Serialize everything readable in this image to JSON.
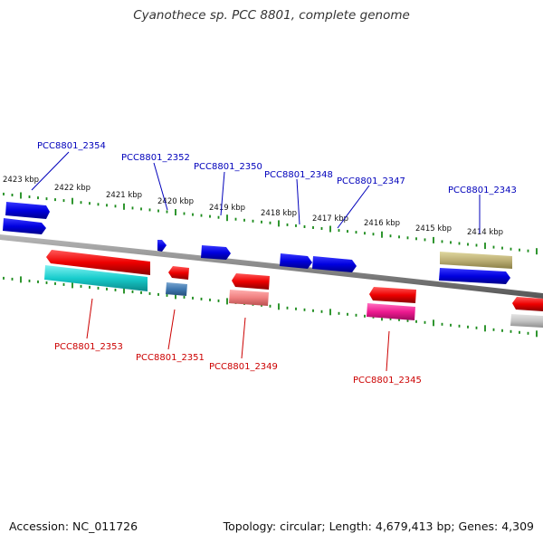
{
  "title": "Cyanothece sp. PCC 8801, complete genome",
  "footer": {
    "accession": "Accession: NC_011726",
    "summary": "Topology: circular; Length: 4,679,413 bp; Genes: 4,309"
  },
  "colors": {
    "forward_label": "#0000bb",
    "reverse_label": "#cc0000",
    "tick": "#1a8a1a",
    "backbone": "#8a8a8a"
  },
  "kbp_labels": [
    "2423 kbp",
    "2422 kbp",
    "2421 kbp",
    "2420 kbp",
    "2419 kbp",
    "2418 kbp",
    "2417 kbp",
    "2416 kbp",
    "2415 kbp",
    "2414 kbp"
  ],
  "genes": [
    {
      "id": "PCC8801_2354",
      "strand": "forward",
      "color": "#0000e0"
    },
    {
      "id": "PCC8801_2352",
      "strand": "forward",
      "color": "#0000e0"
    },
    {
      "id": "PCC8801_2350",
      "strand": "forward",
      "color": "#0000e0"
    },
    {
      "id": "PCC8801_2348",
      "strand": "forward",
      "color": "#0000e0"
    },
    {
      "id": "PCC8801_2347",
      "strand": "forward",
      "color": "#0000e0"
    },
    {
      "id": "PCC8801_2343",
      "strand": "forward",
      "color": "#0000e0"
    },
    {
      "id": "PCC8801_2353",
      "strand": "reverse",
      "color": "#ee0000"
    },
    {
      "id": "PCC8801_2351",
      "strand": "reverse",
      "color": "#ee0000"
    },
    {
      "id": "PCC8801_2349",
      "strand": "reverse",
      "color": "#ee0000"
    },
    {
      "id": "PCC8801_2345",
      "strand": "reverse",
      "color": "#ee0000"
    }
  ]
}
